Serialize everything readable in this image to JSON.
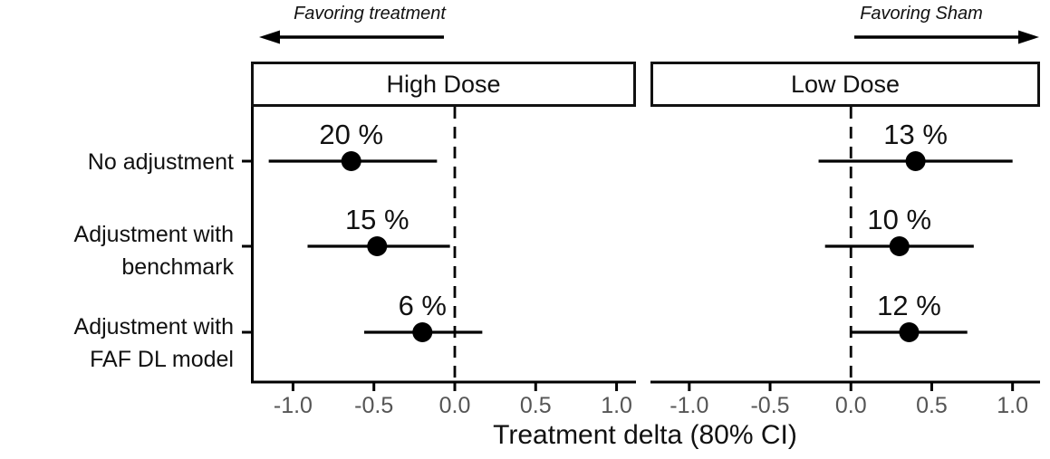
{
  "figure": {
    "annotations": [
      {
        "id": "favoring-treatment",
        "label": "Favoring treatment",
        "direction": "left"
      },
      {
        "id": "favoring-sham",
        "label": "Favoring Sham",
        "direction": "right"
      }
    ]
  },
  "chart_data": {
    "type": "forest",
    "title": "",
    "xlabel": "Treatment delta (80% CI)",
    "x_tick_values": [
      -1.0,
      -0.5,
      0.0,
      0.5,
      1.0
    ],
    "x_tick_labels": [
      "-1.0",
      "-0.5",
      "0.0",
      "0.5",
      "1.0"
    ],
    "reference_line": 0.0,
    "reference_line_style": "dashed",
    "grid": false,
    "legend": "none",
    "categories": [
      {
        "lines": [
          "No adjustment"
        ]
      },
      {
        "lines": [
          "Adjustment with",
          "benchmark"
        ]
      },
      {
        "lines": [
          "Adjustment with",
          "FAF DL model"
        ]
      }
    ],
    "panels": [
      {
        "title": "High Dose",
        "xlim": [
          -1.26,
          1.12
        ],
        "rows": [
          {
            "category": "No adjustment",
            "label": "20 %",
            "estimate": -0.64,
            "ci_low": -1.15,
            "ci_high": -0.11
          },
          {
            "category": "Adjustment with benchmark",
            "label": "15 %",
            "estimate": -0.48,
            "ci_low": -0.91,
            "ci_high": -0.03
          },
          {
            "category": "Adjustment with FAF DL model",
            "label": "6 %",
            "estimate": -0.2,
            "ci_low": -0.56,
            "ci_high": 0.17
          }
        ]
      },
      {
        "title": "Low Dose",
        "xlim": [
          -1.24,
          1.17
        ],
        "rows": [
          {
            "category": "No adjustment",
            "label": "13 %",
            "estimate": 0.4,
            "ci_low": -0.2,
            "ci_high": 1.0
          },
          {
            "category": "Adjustment with benchmark",
            "label": "10 %",
            "estimate": 0.3,
            "ci_low": -0.16,
            "ci_high": 0.76
          },
          {
            "category": "Adjustment with FAF DL model",
            "label": "12 %",
            "estimate": 0.36,
            "ci_low": 0.0,
            "ci_high": 0.72
          }
        ]
      }
    ]
  },
  "colors": {
    "foreground": "#000000",
    "text": "#111111",
    "tick_label": "#555555",
    "background": "#ffffff"
  }
}
